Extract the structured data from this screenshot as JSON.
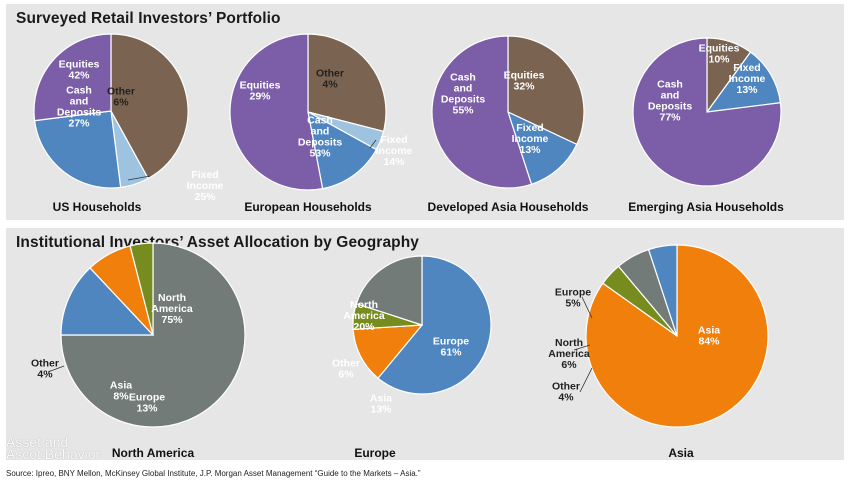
{
  "retail_panel": {
    "title": "Surveyed Retail Investors’ Portfolio"
  },
  "institutional_panel": {
    "title": "Institutional Investors’ Asset Allocation by Geography"
  },
  "source_note": "Source: Ipreo, BNY Mellon, McKinsey Global Institute, J.P. Morgan Asset Management “Guide to the Markets – Asia.”",
  "watermark_line1": "Asset and",
  "watermark_line2": "Ascot Behavior",
  "colors": {
    "equities": "#7a6350",
    "cash": "#7b5ea7",
    "fixed_income": "#4f86bf",
    "other_light": "#9ec3e0",
    "north_america": "#737b78",
    "europe": "#4f86bf",
    "asia": "#f07f0c",
    "other_green": "#778c1e"
  },
  "chart_data": [
    {
      "type": "pie",
      "title": "US Households",
      "slices": [
        {
          "label": "Equities",
          "value": 42,
          "color": "#7a6350"
        },
        {
          "label": "Other",
          "value": 6,
          "color": "#9ec3e0"
        },
        {
          "label": "Fixed Income",
          "value": 25,
          "color": "#4f86bf"
        },
        {
          "label": "Cash and Deposits",
          "value": 27,
          "color": "#7b5ea7"
        }
      ]
    },
    {
      "type": "pie",
      "title": "European Households",
      "slices": [
        {
          "label": "Equities",
          "value": 29,
          "color": "#7a6350"
        },
        {
          "label": "Other",
          "value": 4,
          "color": "#9ec3e0"
        },
        {
          "label": "Fixed Income",
          "value": 14,
          "color": "#4f86bf"
        },
        {
          "label": "Cash and Deposits",
          "value": 53,
          "color": "#7b5ea7"
        }
      ]
    },
    {
      "type": "pie",
      "title": "Developed Asia Households",
      "slices": [
        {
          "label": "Equities",
          "value": 32,
          "color": "#7a6350"
        },
        {
          "label": "Fixed Income",
          "value": 13,
          "color": "#4f86bf"
        },
        {
          "label": "Cash and Deposits",
          "value": 55,
          "color": "#7b5ea7"
        }
      ]
    },
    {
      "type": "pie",
      "title": "Emerging Asia Households",
      "slices": [
        {
          "label": "Equities",
          "value": 10,
          "color": "#7a6350"
        },
        {
          "label": "Fixed Income",
          "value": 13,
          "color": "#4f86bf"
        },
        {
          "label": "Cash and Deposits",
          "value": 77,
          "color": "#7b5ea7"
        }
      ]
    },
    {
      "type": "pie",
      "title": "North America",
      "slices": [
        {
          "label": "North America",
          "value": 75,
          "color": "#737b78"
        },
        {
          "label": "Europe",
          "value": 13,
          "color": "#4f86bf"
        },
        {
          "label": "Asia",
          "value": 8,
          "color": "#f07f0c"
        },
        {
          "label": "Other",
          "value": 4,
          "color": "#778c1e"
        }
      ]
    },
    {
      "type": "pie",
      "title": "Europe",
      "slices": [
        {
          "label": "Europe",
          "value": 61,
          "color": "#4f86bf"
        },
        {
          "label": "Asia",
          "value": 13,
          "color": "#f07f0c"
        },
        {
          "label": "Other",
          "value": 6,
          "color": "#778c1e"
        },
        {
          "label": "North America",
          "value": 20,
          "color": "#737b78"
        }
      ]
    },
    {
      "type": "pie",
      "title": "Asia",
      "slices": [
        {
          "label": "Asia",
          "value": 84,
          "color": "#f07f0c"
        },
        {
          "label": "Other",
          "value": 4,
          "color": "#778c1e"
        },
        {
          "label": "North America",
          "value": 6,
          "color": "#737b78"
        },
        {
          "label": "Europe",
          "value": 5,
          "color": "#4f86bf"
        }
      ]
    }
  ]
}
